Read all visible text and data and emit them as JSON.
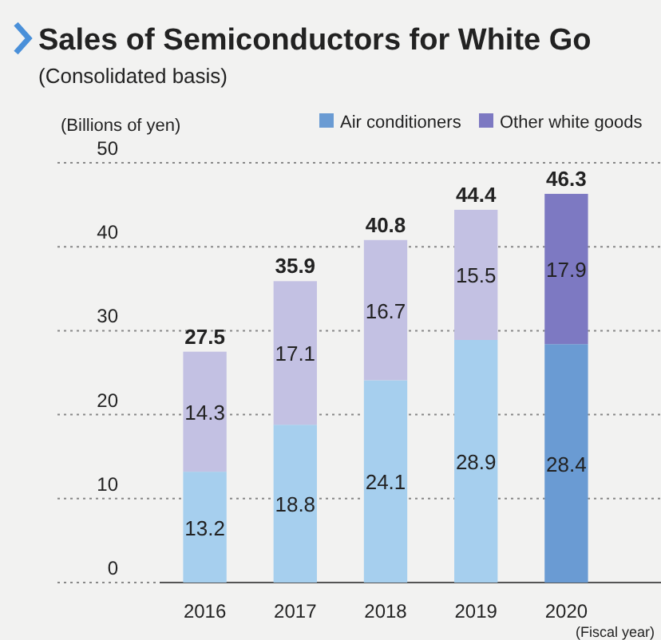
{
  "chart_data": {
    "type": "bar",
    "title": "Sales of Semiconductors for White Go",
    "subtitle": "(Consolidated basis)",
    "ylabel": "(Billions of yen)",
    "xlabel": "(Fiscal year)",
    "categories": [
      "2016",
      "2017",
      "2018",
      "2019",
      "2020"
    ],
    "series": [
      {
        "name": "Air conditioners",
        "color": "#6a9bd3",
        "colors": [
          "#a6cfee",
          "#a6cfee",
          "#a6cfee",
          "#a6cfee",
          "#6a9bd3"
        ],
        "values": [
          13.2,
          18.8,
          24.1,
          28.9,
          28.4
        ]
      },
      {
        "name": "Other white goods",
        "color": "#7d79c2",
        "colors": [
          "#c3c1e3",
          "#c3c1e3",
          "#c3c1e3",
          "#c3c1e3",
          "#7d79c2"
        ],
        "values": [
          14.3,
          17.1,
          16.7,
          15.5,
          17.9
        ]
      }
    ],
    "stacked": true,
    "totals": [
      "27.5",
      "35.9",
      "40.8",
      "44.4",
      "46.3"
    ],
    "data_labels": true,
    "ylim": [
      0,
      50
    ],
    "yticks": [
      0,
      10,
      20,
      30,
      40,
      50
    ],
    "grid": "y",
    "legend": "top right"
  }
}
